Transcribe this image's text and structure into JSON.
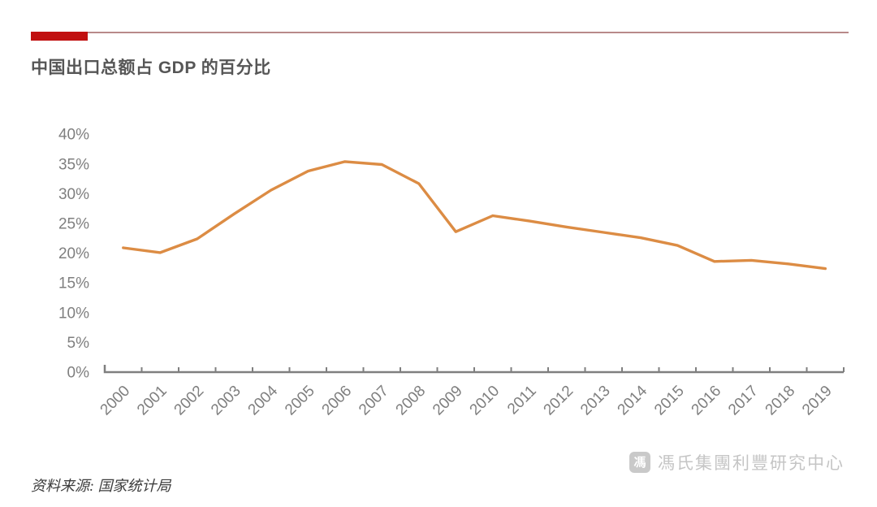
{
  "page": {
    "title": "中国出口总额占 GDP 的百分比",
    "source_note": "资料来源: 国家统计局",
    "watermark": {
      "icon": "馮",
      "text": "馮氏集團利豐研究中心"
    }
  },
  "colors": {
    "accent_bar_red": "#c11010",
    "header_rule": "#b98a8a",
    "line_orange": "#dc8c44",
    "axis_gray": "#7f7f7f",
    "label_gray": "#7f7f7f",
    "title_gray": "#565656",
    "watermark_gray": "#c5c5c5"
  },
  "chart_data": {
    "type": "line",
    "title": "中国出口总额占 GDP 的百分比",
    "categories": [
      "2000",
      "2001",
      "2002",
      "2003",
      "2004",
      "2005",
      "2006",
      "2007",
      "2008",
      "2009",
      "2010",
      "2011",
      "2012",
      "2013",
      "2014",
      "2015",
      "2016",
      "2017",
      "2018",
      "2019"
    ],
    "values": [
      20.9,
      20.1,
      22.4,
      26.6,
      30.6,
      33.8,
      35.4,
      34.9,
      31.7,
      23.6,
      26.3,
      25.4,
      24.4,
      23.5,
      22.6,
      21.3,
      18.6,
      18.8,
      18.2,
      17.4
    ],
    "xlabel": "",
    "ylabel": "",
    "ylim": [
      0,
      40
    ],
    "ytick_step": 5,
    "ytick_labels": [
      "0%",
      "5%",
      "10%",
      "15%",
      "20%",
      "25%",
      "30%",
      "35%",
      "40%"
    ],
    "grid": false,
    "legend": "none",
    "line_color": "#dc8c44"
  }
}
